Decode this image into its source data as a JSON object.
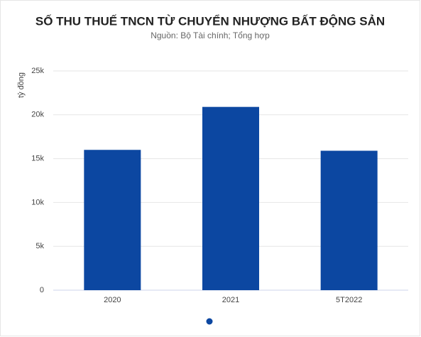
{
  "chart_data": {
    "type": "bar",
    "title": "SỐ THU THUẾ TNCN TỪ CHUYỂN NHƯỢNG BẤT ĐỘNG SẢN",
    "subtitle": "Nguồn: Bộ Tài chính; Tổng hợp",
    "y_label": "tỷ đồng",
    "categories": [
      "2020",
      "2021",
      "5T2022"
    ],
    "values": [
      16000,
      20900,
      15900
    ],
    "color": "#0c47a1",
    "ylim": [
      0,
      25000
    ],
    "yticks": [
      0,
      {
        "value": 5000,
        "label": "5k"
      },
      {
        "value": 10000,
        "label": "10k"
      },
      {
        "value": 15000,
        "label": "15k"
      },
      {
        "value": 20000,
        "label": "20k"
      },
      {
        "value": 25000,
        "label": "25k"
      }
    ],
    "grid": true
  }
}
